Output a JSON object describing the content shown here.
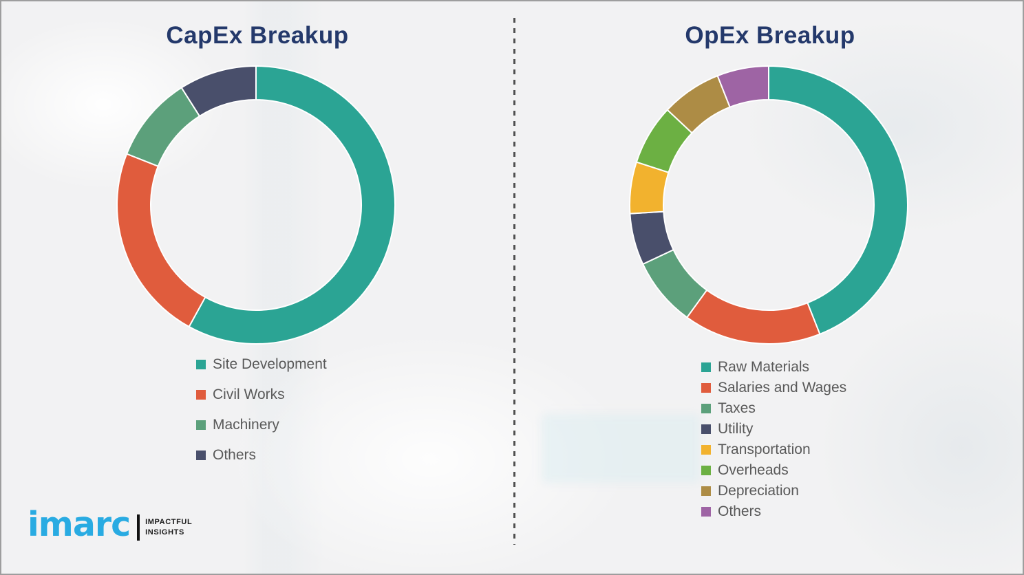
{
  "capex": {
    "title": "CapEx Breakup"
  },
  "opex": {
    "title": "OpEx Breakup"
  },
  "chart_data": [
    {
      "type": "pie",
      "subtype": "donut",
      "title": "CapEx Breakup",
      "labels": [
        "Site Development",
        "Civil Works",
        "Machinery",
        "Others"
      ],
      "values": [
        58,
        23,
        10,
        9
      ],
      "colors": [
        "#2BA494",
        "#E05C3D",
        "#5CA07B",
        "#494F6B"
      ],
      "unit": "percent-estimated-from-arc-angles",
      "start_angle_deg": 0,
      "direction": "clockwise",
      "legend_position": "below-left",
      "title_color": "#24396B"
    },
    {
      "type": "pie",
      "subtype": "donut",
      "title": "OpEx Breakup",
      "labels": [
        "Raw Materials",
        "Salaries and Wages",
        "Taxes",
        "Utility",
        "Transportation",
        "Overheads",
        "Depreciation",
        "Others"
      ],
      "values": [
        44,
        16,
        8,
        6,
        6,
        7,
        7,
        6
      ],
      "colors": [
        "#2BA494",
        "#E05C3D",
        "#5CA07B",
        "#494F6B",
        "#F2B22E",
        "#6CB043",
        "#AD8C45",
        "#9E64A4"
      ],
      "unit": "percent-estimated-from-arc-angles",
      "start_angle_deg": 0,
      "direction": "clockwise",
      "legend_position": "below-left",
      "title_color": "#24396B"
    }
  ],
  "logo": {
    "brand": "imarc",
    "tagline_line1": "IMPACTFUL",
    "tagline_line2": "INSIGHTS",
    "brand_color": "#29ABE2"
  }
}
